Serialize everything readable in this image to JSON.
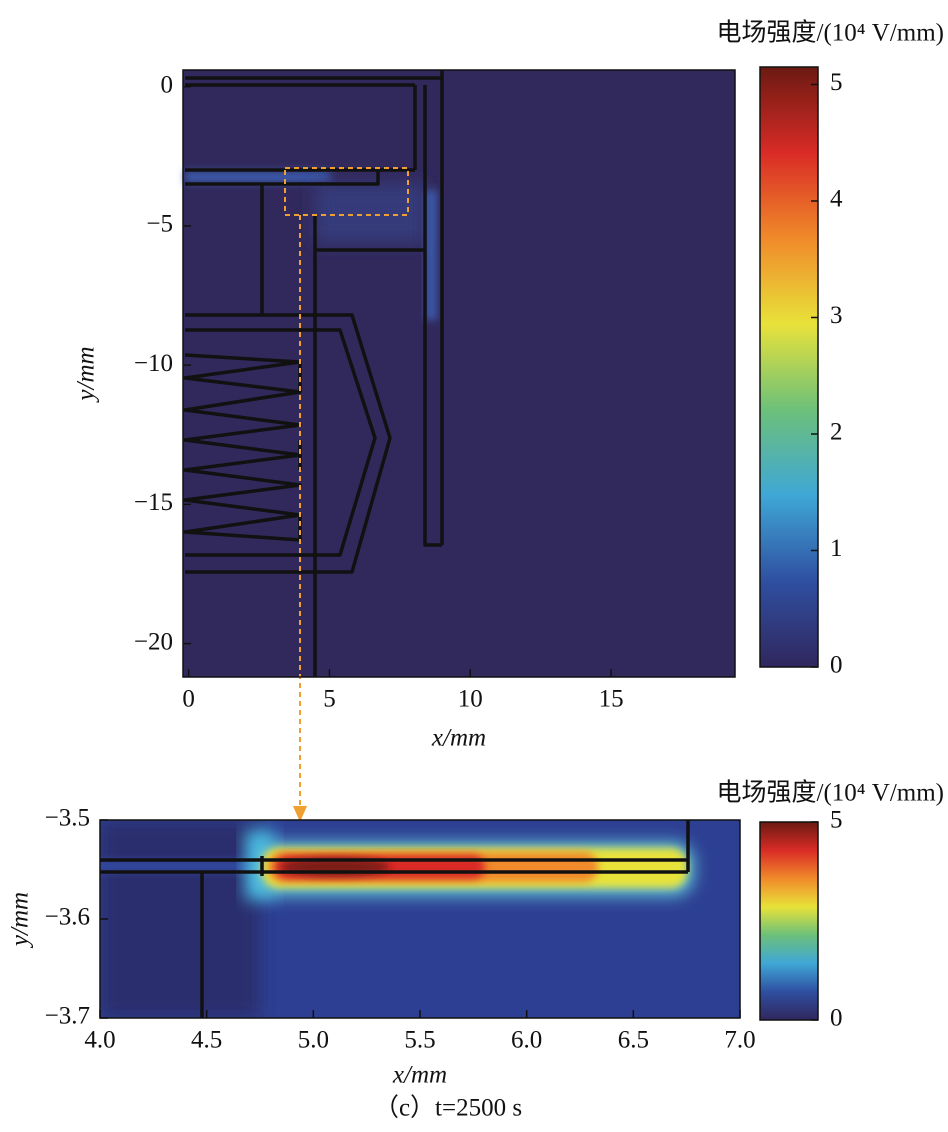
{
  "chart_data": [
    {
      "type": "heatmap",
      "xlabel": "x/mm",
      "ylabel": "y/mm",
      "colorbar_label": "电场强度/(10⁴ V/mm)",
      "xlim": [
        -0.2,
        19.4
      ],
      "ylim": [
        -21.2,
        0.6
      ],
      "xticks": [
        0,
        5,
        10,
        15
      ],
      "yticks": [
        {
          "value": 0,
          "label": "0"
        },
        {
          "value": -5,
          "label": "−5"
        },
        {
          "value": -10,
          "label": "−10"
        },
        {
          "value": -15,
          "label": "−15"
        },
        {
          "value": -20,
          "label": "−20"
        }
      ],
      "clim": [
        0,
        5.15
      ],
      "cticks": [
        0,
        1,
        2,
        3,
        4,
        5
      ],
      "colormap": [
        "#30275e",
        "#2f4fa0",
        "#3fa7d6",
        "#6cc07a",
        "#e8e23a",
        "#f08a2a",
        "#d92b26",
        "#6b1a12"
      ]
    },
    {
      "type": "heatmap",
      "xlabel": "x/mm",
      "ylabel": "y/mm",
      "colorbar_label": "电场强度/(10⁴ V/mm)",
      "xlim": [
        4.0,
        7.0
      ],
      "ylim": [
        -3.7,
        -3.5
      ],
      "xticks": [
        {
          "value": 4,
          "label": "4.0"
        },
        {
          "value": 4.5,
          "label": "4.5"
        },
        {
          "value": 5,
          "label": "5.0"
        },
        {
          "value": 5.5,
          "label": "5.5"
        },
        {
          "value": 6,
          "label": "6.0"
        },
        {
          "value": 6.5,
          "label": "6.5"
        },
        {
          "value": 7,
          "label": "7.0"
        }
      ],
      "yticks": [
        {
          "value": -3.5,
          "label": "−3.5"
        },
        {
          "value": -3.6,
          "label": "−3.6"
        },
        {
          "value": -3.7,
          "label": "−3.7"
        }
      ],
      "clim": [
        0,
        5
      ],
      "cticks": [
        0,
        5
      ],
      "colormap": [
        "#30275e",
        "#2f4fa0",
        "#3fa7d6",
        "#6cc07a",
        "#e8e23a",
        "#f08a2a",
        "#d92b26",
        "#6b1a12"
      ]
    }
  ],
  "caption": "（c）t=2500 s"
}
